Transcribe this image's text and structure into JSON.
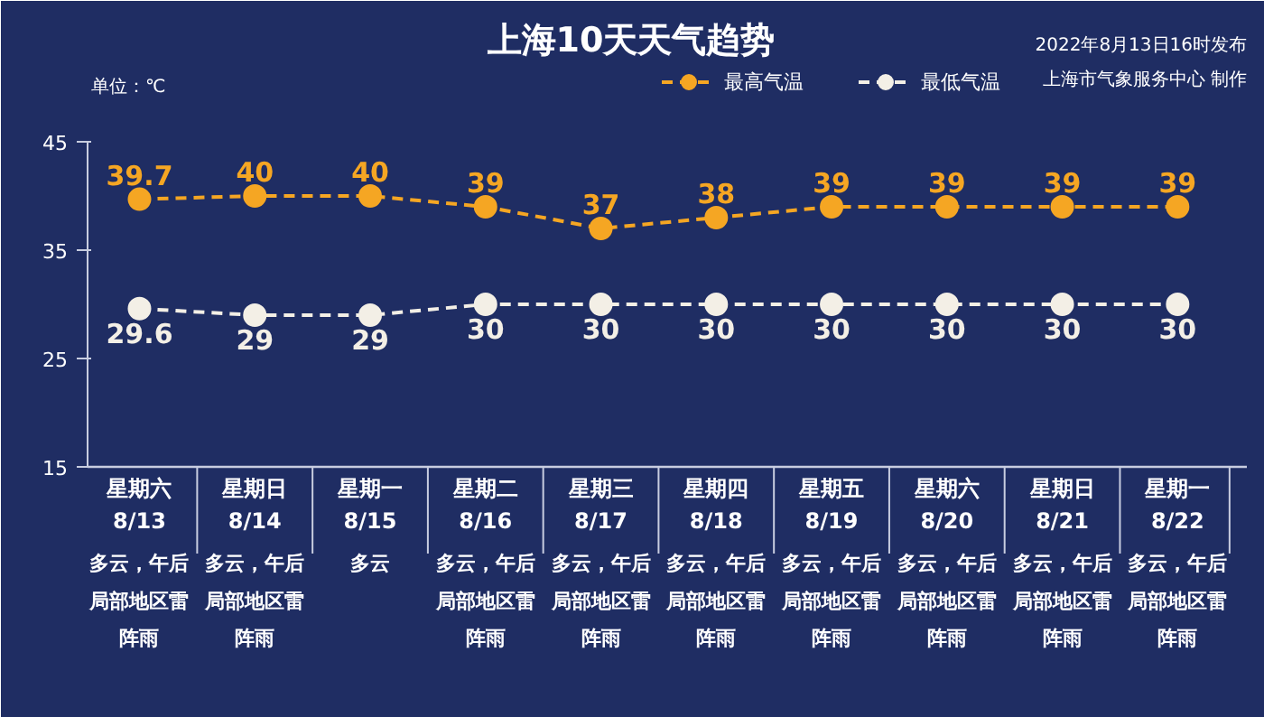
{
  "chart_data": {
    "type": "line",
    "title": "上海10天天气趋势",
    "subtitle": "2022年8月13日16时发布",
    "ylabel": "单位：℃",
    "categories": [
      "星期六 8/13",
      "星期日 8/14",
      "星期一 8/15",
      "星期二 8/16",
      "星期三 8/17",
      "星期四 8/18",
      "星期五 8/19",
      "星期六 8/20",
      "星期日 8/21",
      "星期一 8/22"
    ],
    "series": [
      {
        "name": "最高气温",
        "color": "#f5a623",
        "values": [
          39.7,
          40,
          40,
          39,
          37,
          38,
          39,
          39,
          39,
          39
        ]
      },
      {
        "name": "最低气温",
        "color": "#f3efe6",
        "values": [
          29.6,
          29,
          29,
          30,
          30,
          30,
          30,
          30,
          30,
          30
        ]
      }
    ],
    "ylim": [
      15,
      45
    ],
    "yticks": [
      15,
      25,
      35,
      45
    ],
    "grid": false,
    "legend": "top right",
    "marker": "circle",
    "line_style": "dashed",
    "data_labels": true,
    "annotations": [
      "上海市气象服务中心 制作",
      "多云，午后局部地区雷阵雨",
      "多云，午后局部地区雷阵雨",
      "多云",
      "多云，午后局部地区雷阵雨",
      "多云，午后局部地区雷阵雨",
      "多云，午后局部地区雷阵雨",
      "多云，午后局部地区雷阵雨",
      "多云，午后局部地区雷阵雨",
      "多云，午后局部地区雷阵雨",
      "多云，午后局部地区雷阵雨"
    ]
  }
}
